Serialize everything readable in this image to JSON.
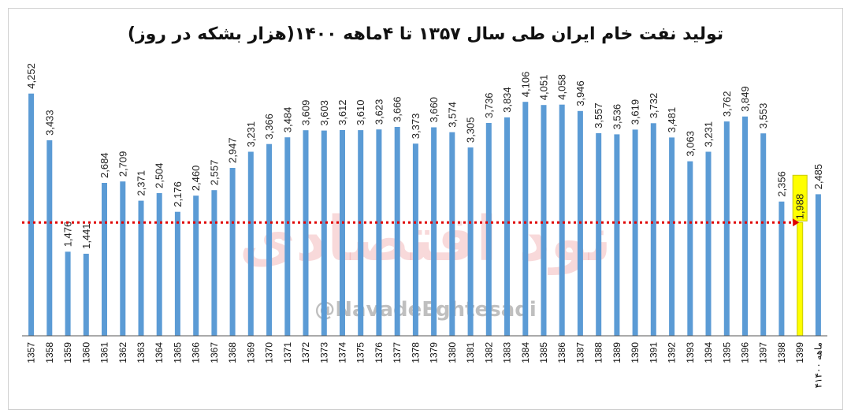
{
  "chart_data": {
    "type": "bar",
    "title": "تولید نفت خام ایران طی سال ۱۳۵۷ تا ۴ماهه ۱۴۰۰(هزار بشکه در روز)",
    "categories": [
      "1357",
      "1358",
      "1359",
      "1360",
      "1361",
      "1362",
      "1363",
      "1364",
      "1365",
      "1366",
      "1367",
      "1368",
      "1369",
      "1370",
      "1371",
      "1372",
      "1373",
      "1374",
      "1375",
      "1376",
      "1377",
      "1378",
      "1379",
      "1380",
      "1381",
      "1382",
      "1383",
      "1384",
      "1385",
      "1386",
      "1387",
      "1388",
      "1389",
      "1390",
      "1391",
      "1392",
      "1393",
      "1394",
      "1395",
      "1396",
      "1397",
      "1398",
      "1399",
      "۴ماهه ۱۴۰۰"
    ],
    "values": [
      4252,
      3433,
      1476,
      1441,
      2684,
      2709,
      2371,
      2504,
      2176,
      2460,
      2557,
      2947,
      3231,
      3366,
      3484,
      3609,
      3603,
      3612,
      3610,
      3623,
      3666,
      3373,
      3660,
      3574,
      3305,
      3736,
      3834,
      4106,
      4051,
      4058,
      3946,
      3557,
      3536,
      3619,
      3732,
      3481,
      3063,
      3231,
      3762,
      3849,
      3553,
      2356,
      1988,
      2485
    ],
    "value_labels": [
      "4,252",
      "3,433",
      "1,476",
      "1,441",
      "2,684",
      "2,709",
      "2,371",
      "2,504",
      "2,176",
      "2,460",
      "2,557",
      "2,947",
      "3,231",
      "3,366",
      "3,484",
      "3,609",
      "3,603",
      "3,612",
      "3,610",
      "3,623",
      "3,666",
      "3,373",
      "3,660",
      "3,574",
      "3,305",
      "3,736",
      "3,834",
      "4,106",
      "4,051",
      "4,058",
      "3,946",
      "3,557",
      "3,536",
      "3,619",
      "3,732",
      "3,481",
      "3,063",
      "3,231",
      "3,762",
      "3,849",
      "3,553",
      "2,356",
      "1,988",
      "2,485"
    ],
    "highlight_index": 42,
    "reference_line_value": 1988,
    "ylim": [
      0,
      4400
    ],
    "xlabel": "",
    "ylabel": "",
    "grid": false,
    "legend": "none",
    "colors": {
      "bar": "#5b9bd5",
      "highlight_bar": "#ffff00",
      "highlight_border": "#c9c900",
      "reference_line": "#e00000",
      "axis": "#555555"
    }
  },
  "watermark": {
    "logo_text": "نود اقتصادی",
    "handle": "@NavadeEghtesadi",
    "color": "#e8898c"
  }
}
